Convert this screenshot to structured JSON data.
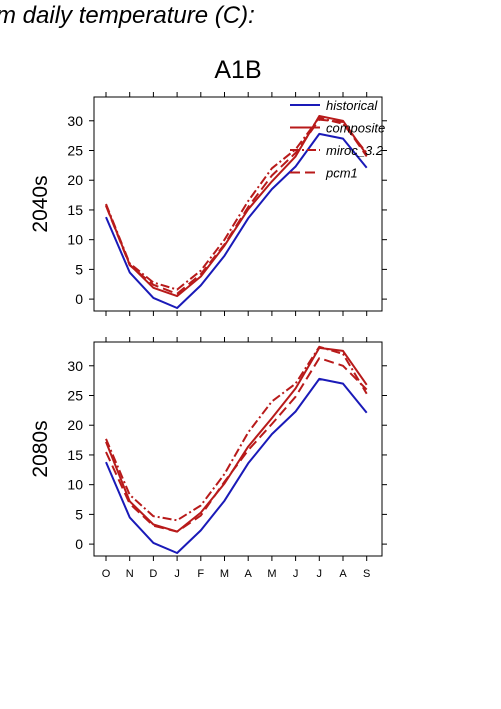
{
  "header": {
    "title_fragment": "m daily temperature (C):",
    "scenario": "A1B"
  },
  "chart_data": [
    {
      "type": "line",
      "row_label": "2040s",
      "categories": [
        "O",
        "N",
        "D",
        "J",
        "F",
        "M",
        "A",
        "M",
        "J",
        "J",
        "A",
        "S"
      ],
      "ylim": [
        -2,
        34
      ],
      "yticks": [
        0,
        5,
        10,
        15,
        20,
        25,
        30
      ],
      "legend_position": "top-right",
      "series": [
        {
          "name": "historical",
          "color": "#1a1ab8",
          "dash": "solid",
          "values": [
            13.8,
            4.5,
            0.2,
            -1.5,
            2.3,
            7.3,
            13.6,
            18.5,
            22.3,
            27.8,
            27.0,
            22.1
          ]
        },
        {
          "name": "composite",
          "color": "#b81a1a",
          "dash": "solid",
          "values": [
            15.8,
            5.8,
            1.9,
            0.5,
            3.8,
            9.0,
            15.1,
            19.8,
            24.0,
            30.8,
            30.0,
            24.3
          ]
        },
        {
          "name": "miroc_3.2",
          "color": "#b81a1a",
          "dash": "dashdot",
          "values": [
            16.0,
            6.0,
            2.8,
            1.6,
            4.8,
            10.0,
            16.5,
            22.0,
            25.2,
            30.5,
            29.5,
            24.6
          ]
        },
        {
          "name": "pcm1",
          "color": "#b81a1a",
          "dash": "longdash",
          "values": [
            15.7,
            5.7,
            2.4,
            0.9,
            4.2,
            9.2,
            15.5,
            20.8,
            24.6,
            30.2,
            29.8,
            24.0
          ]
        }
      ]
    },
    {
      "type": "line",
      "row_label": "2080s",
      "categories": [
        "O",
        "N",
        "D",
        "J",
        "F",
        "M",
        "A",
        "M",
        "J",
        "J",
        "A",
        "S"
      ],
      "ylim": [
        -2,
        34
      ],
      "yticks": [
        0,
        5,
        10,
        15,
        20,
        25,
        30
      ],
      "series": [
        {
          "name": "historical",
          "color": "#1a1ab8",
          "dash": "solid",
          "values": [
            13.8,
            4.5,
            0.2,
            -1.5,
            2.3,
            7.3,
            13.6,
            18.5,
            22.3,
            27.8,
            27.0,
            22.1
          ]
        },
        {
          "name": "composite",
          "color": "#b81a1a",
          "dash": "solid",
          "values": [
            17.2,
            7.2,
            3.3,
            2.1,
            5.3,
            10.2,
            16.4,
            21.2,
            26.2,
            33.0,
            32.5,
            26.8
          ]
        },
        {
          "name": "miroc_3.2",
          "color": "#b81a1a",
          "dash": "dashdot",
          "values": [
            17.7,
            8.3,
            4.7,
            4.0,
            6.5,
            11.8,
            18.8,
            24.0,
            27.0,
            33.2,
            32.0,
            25.3
          ]
        },
        {
          "name": "pcm1",
          "color": "#b81a1a",
          "dash": "longdash",
          "values": [
            15.5,
            6.8,
            3.1,
            2.1,
            4.8,
            10.5,
            15.8,
            20.2,
            24.8,
            31.3,
            30.0,
            26.0
          ]
        }
      ]
    }
  ],
  "legend": {
    "entries": [
      "historical",
      "composite",
      "miroc_3.2",
      "pcm1"
    ]
  }
}
